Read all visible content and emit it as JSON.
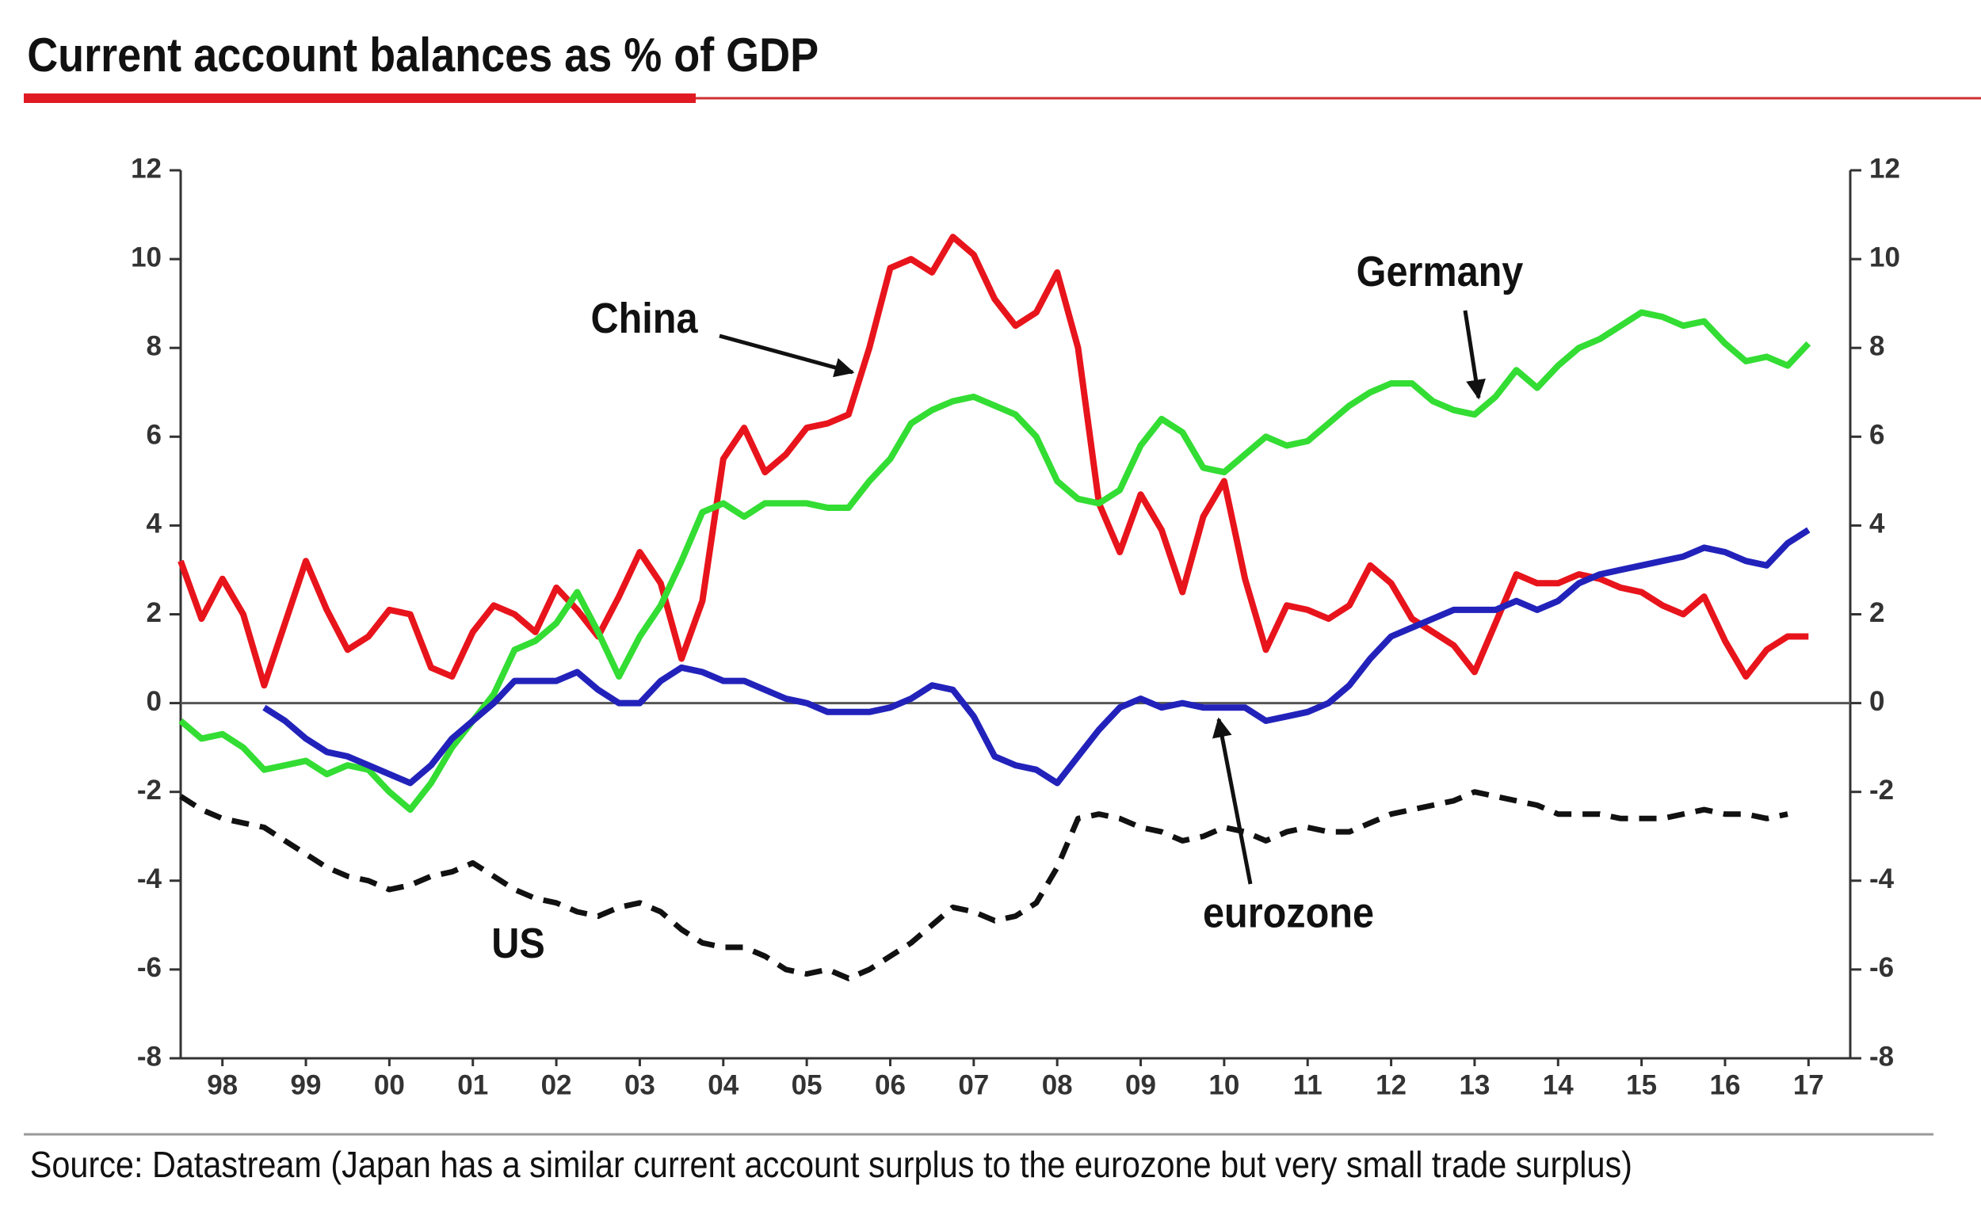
{
  "chart_data": {
    "type": "line",
    "title": "Current account balances as % of GDP",
    "source": "Source: Datastream (Japan has a similar current account surplus to the eurozone but very small trade surplus)",
    "x": [
      1998,
      1998.25,
      1998.5,
      1998.75,
      1999,
      1999.25,
      1999.5,
      1999.75,
      2000,
      2000.25,
      2000.5,
      2000.75,
      2001,
      2001.25,
      2001.5,
      2001.75,
      2002,
      2002.25,
      2002.5,
      2002.75,
      2003,
      2003.25,
      2003.5,
      2003.75,
      2004,
      2004.25,
      2004.5,
      2004.75,
      2005,
      2005.25,
      2005.5,
      2005.75,
      2006,
      2006.25,
      2006.5,
      2006.75,
      2007,
      2007.25,
      2007.5,
      2007.75,
      2008,
      2008.25,
      2008.5,
      2008.75,
      2009,
      2009.25,
      2009.5,
      2009.75,
      2010,
      2010.25,
      2010.5,
      2010.75,
      2011,
      2011.25,
      2011.5,
      2011.75,
      2012,
      2012.25,
      2012.5,
      2012.75,
      2013,
      2013.25,
      2013.5,
      2013.75,
      2014,
      2014.25,
      2014.5,
      2014.75,
      2015,
      2015.25,
      2015.5,
      2015.75,
      2016,
      2016.25,
      2016.5,
      2016.75,
      2017,
      2017.25,
      2017.5
    ],
    "series": [
      {
        "name": "China",
        "color": "#e8141c",
        "dash": false,
        "values": [
          3.2,
          1.9,
          2.8,
          2.0,
          0.4,
          1.8,
          3.2,
          2.1,
          1.2,
          1.5,
          2.1,
          2.0,
          0.8,
          0.6,
          1.6,
          2.2,
          2.0,
          1.6,
          2.6,
          2.1,
          1.5,
          2.4,
          3.4,
          2.7,
          1.0,
          2.3,
          5.5,
          6.2,
          5.2,
          5.6,
          6.2,
          6.3,
          6.5,
          8.0,
          9.8,
          10.0,
          9.7,
          10.5,
          10.1,
          9.1,
          8.5,
          8.8,
          9.7,
          8.0,
          4.5,
          3.4,
          4.7,
          3.9,
          2.5,
          4.2,
          5.0,
          2.8,
          1.2,
          2.2,
          2.1,
          1.9,
          2.2,
          3.1,
          2.7,
          1.9,
          1.6,
          1.3,
          0.7,
          1.8,
          2.9,
          2.7,
          2.7,
          2.9,
          2.8,
          2.6,
          2.5,
          2.2,
          2.0,
          2.4,
          1.4,
          0.6,
          1.2,
          1.5,
          1.5
        ]
      },
      {
        "name": "Germany",
        "color": "#33dd33",
        "dash": false,
        "values": [
          -0.4,
          -0.8,
          -0.7,
          -1.0,
          -1.5,
          -1.4,
          -1.3,
          -1.6,
          -1.4,
          -1.5,
          -2.0,
          -2.4,
          -1.8,
          -1.0,
          -0.4,
          0.2,
          1.2,
          1.4,
          1.8,
          2.5,
          1.6,
          0.6,
          1.5,
          2.2,
          3.2,
          4.3,
          4.5,
          4.2,
          4.5,
          4.5,
          4.5,
          4.4,
          4.4,
          5.0,
          5.5,
          6.3,
          6.6,
          6.8,
          6.9,
          6.7,
          6.5,
          6.0,
          5.0,
          4.6,
          4.5,
          4.8,
          5.8,
          6.4,
          6.1,
          5.3,
          5.2,
          5.6,
          6.0,
          5.8,
          5.9,
          6.3,
          6.7,
          7.0,
          7.2,
          7.2,
          6.8,
          6.6,
          6.5,
          6.9,
          7.5,
          7.1,
          7.6,
          8.0,
          8.2,
          8.5,
          8.8,
          8.7,
          8.5,
          8.6,
          8.1,
          7.7,
          7.8,
          7.6,
          8.1
        ]
      },
      {
        "name": "eurozone",
        "color": "#2222bb",
        "dash": false,
        "values": [
          null,
          null,
          null,
          null,
          -0.1,
          -0.4,
          -0.8,
          -1.1,
          -1.2,
          -1.4,
          -1.6,
          -1.8,
          -1.4,
          -0.8,
          -0.4,
          0.0,
          0.5,
          0.5,
          0.5,
          0.7,
          0.3,
          0.0,
          0.0,
          0.5,
          0.8,
          0.7,
          0.5,
          0.5,
          0.3,
          0.1,
          0.0,
          -0.2,
          -0.2,
          -0.2,
          -0.1,
          0.1,
          0.4,
          0.3,
          -0.3,
          -1.2,
          -1.4,
          -1.5,
          -1.8,
          -1.2,
          -0.6,
          -0.1,
          0.1,
          -0.1,
          0.0,
          -0.1,
          -0.1,
          -0.1,
          -0.4,
          -0.3,
          -0.2,
          0.0,
          0.4,
          1.0,
          1.5,
          1.7,
          1.9,
          2.1,
          2.1,
          2.1,
          2.3,
          2.1,
          2.3,
          2.7,
          2.9,
          3.0,
          3.1,
          3.2,
          3.3,
          3.5,
          3.4,
          3.2,
          3.1,
          3.6,
          3.9
        ]
      },
      {
        "name": "US",
        "color": "#111111",
        "dash": true,
        "values": [
          -2.1,
          -2.4,
          -2.6,
          -2.7,
          -2.8,
          -3.1,
          -3.4,
          -3.7,
          -3.9,
          -4.0,
          -4.2,
          -4.1,
          -3.9,
          -3.8,
          -3.6,
          -3.9,
          -4.2,
          -4.4,
          -4.5,
          -4.7,
          -4.8,
          -4.6,
          -4.5,
          -4.7,
          -5.1,
          -5.4,
          -5.5,
          -5.5,
          -5.7,
          -6.0,
          -6.1,
          -6.0,
          -6.2,
          -6.0,
          -5.7,
          -5.4,
          -5.0,
          -4.6,
          -4.7,
          -4.9,
          -4.8,
          -4.5,
          -3.7,
          -2.6,
          -2.5,
          -2.6,
          -2.8,
          -2.9,
          -3.1,
          -3.0,
          -2.8,
          -2.9,
          -3.1,
          -2.9,
          -2.8,
          -2.9,
          -2.9,
          -2.7,
          -2.5,
          -2.4,
          -2.3,
          -2.2,
          -2.0,
          -2.1,
          -2.2,
          -2.3,
          -2.5,
          -2.5,
          -2.5,
          -2.6,
          -2.6,
          -2.6,
          -2.5,
          -2.4,
          -2.5,
          -2.5,
          -2.6,
          -2.5,
          null
        ]
      }
    ],
    "xlim": [
      1998,
      2018
    ],
    "xticks": [
      {
        "value": 1998.5,
        "label": "98"
      },
      {
        "value": 1999.5,
        "label": "99"
      },
      {
        "value": 2000.5,
        "label": "00"
      },
      {
        "value": 2001.5,
        "label": "01"
      },
      {
        "value": 2002.5,
        "label": "02"
      },
      {
        "value": 2003.5,
        "label": "03"
      },
      {
        "value": 2004.5,
        "label": "04"
      },
      {
        "value": 2005.5,
        "label": "05"
      },
      {
        "value": 2006.5,
        "label": "06"
      },
      {
        "value": 2007.5,
        "label": "07"
      },
      {
        "value": 2008.5,
        "label": "08"
      },
      {
        "value": 2009.5,
        "label": "09"
      },
      {
        "value": 2010.5,
        "label": "10"
      },
      {
        "value": 2011.5,
        "label": "11"
      },
      {
        "value": 2012.5,
        "label": "12"
      },
      {
        "value": 2013.5,
        "label": "13"
      },
      {
        "value": 2014.5,
        "label": "14"
      },
      {
        "value": 2015.5,
        "label": "15"
      },
      {
        "value": 2016.5,
        "label": "16"
      },
      {
        "value": 2017.5,
        "label": "17"
      }
    ],
    "ylim": [
      -8,
      12
    ],
    "yticks": [
      -8,
      -6,
      -4,
      -2,
      0,
      2,
      4,
      6,
      8,
      10,
      12
    ],
    "y2lim": [
      -8,
      12
    ],
    "y2ticks": [
      -8,
      -6,
      -4,
      -2,
      0,
      2,
      4,
      6,
      8,
      10,
      12
    ],
    "grid": false,
    "annotations": [
      {
        "text": "China",
        "series": 0
      },
      {
        "text": "Germany",
        "series": 1
      },
      {
        "text": "eurozone",
        "series": 2
      },
      {
        "text": "US",
        "series": 3
      }
    ]
  }
}
